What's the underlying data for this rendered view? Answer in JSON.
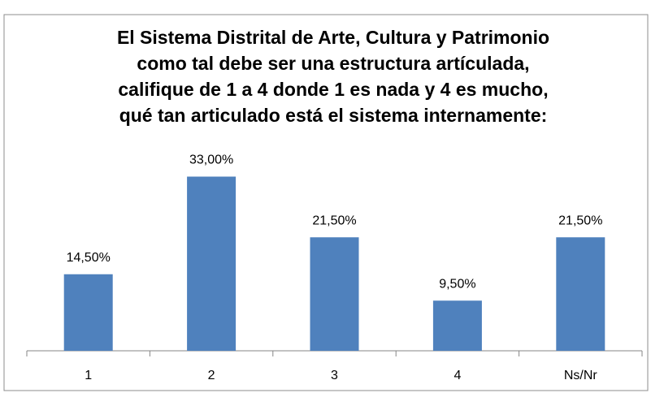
{
  "chart_data": {
    "type": "bar",
    "title": [
      "El Sistema Distrital de Arte, Cultura y Patrimonio",
      "como tal debe ser una estructura artículada,",
      "califique de 1 a 4 donde 1 es nada y 4 es mucho,",
      "qué tan articulado está el sistema internamente:"
    ],
    "categories": [
      "1",
      "2",
      "3",
      "4",
      "Ns/Nr"
    ],
    "values": [
      14.5,
      33,
      21.5,
      9.5,
      21.5
    ],
    "value_labels": [
      "14,50%",
      "33,00%",
      "21,50%",
      "9,50%",
      "21,50%"
    ],
    "color": "#4f81bd"
  }
}
